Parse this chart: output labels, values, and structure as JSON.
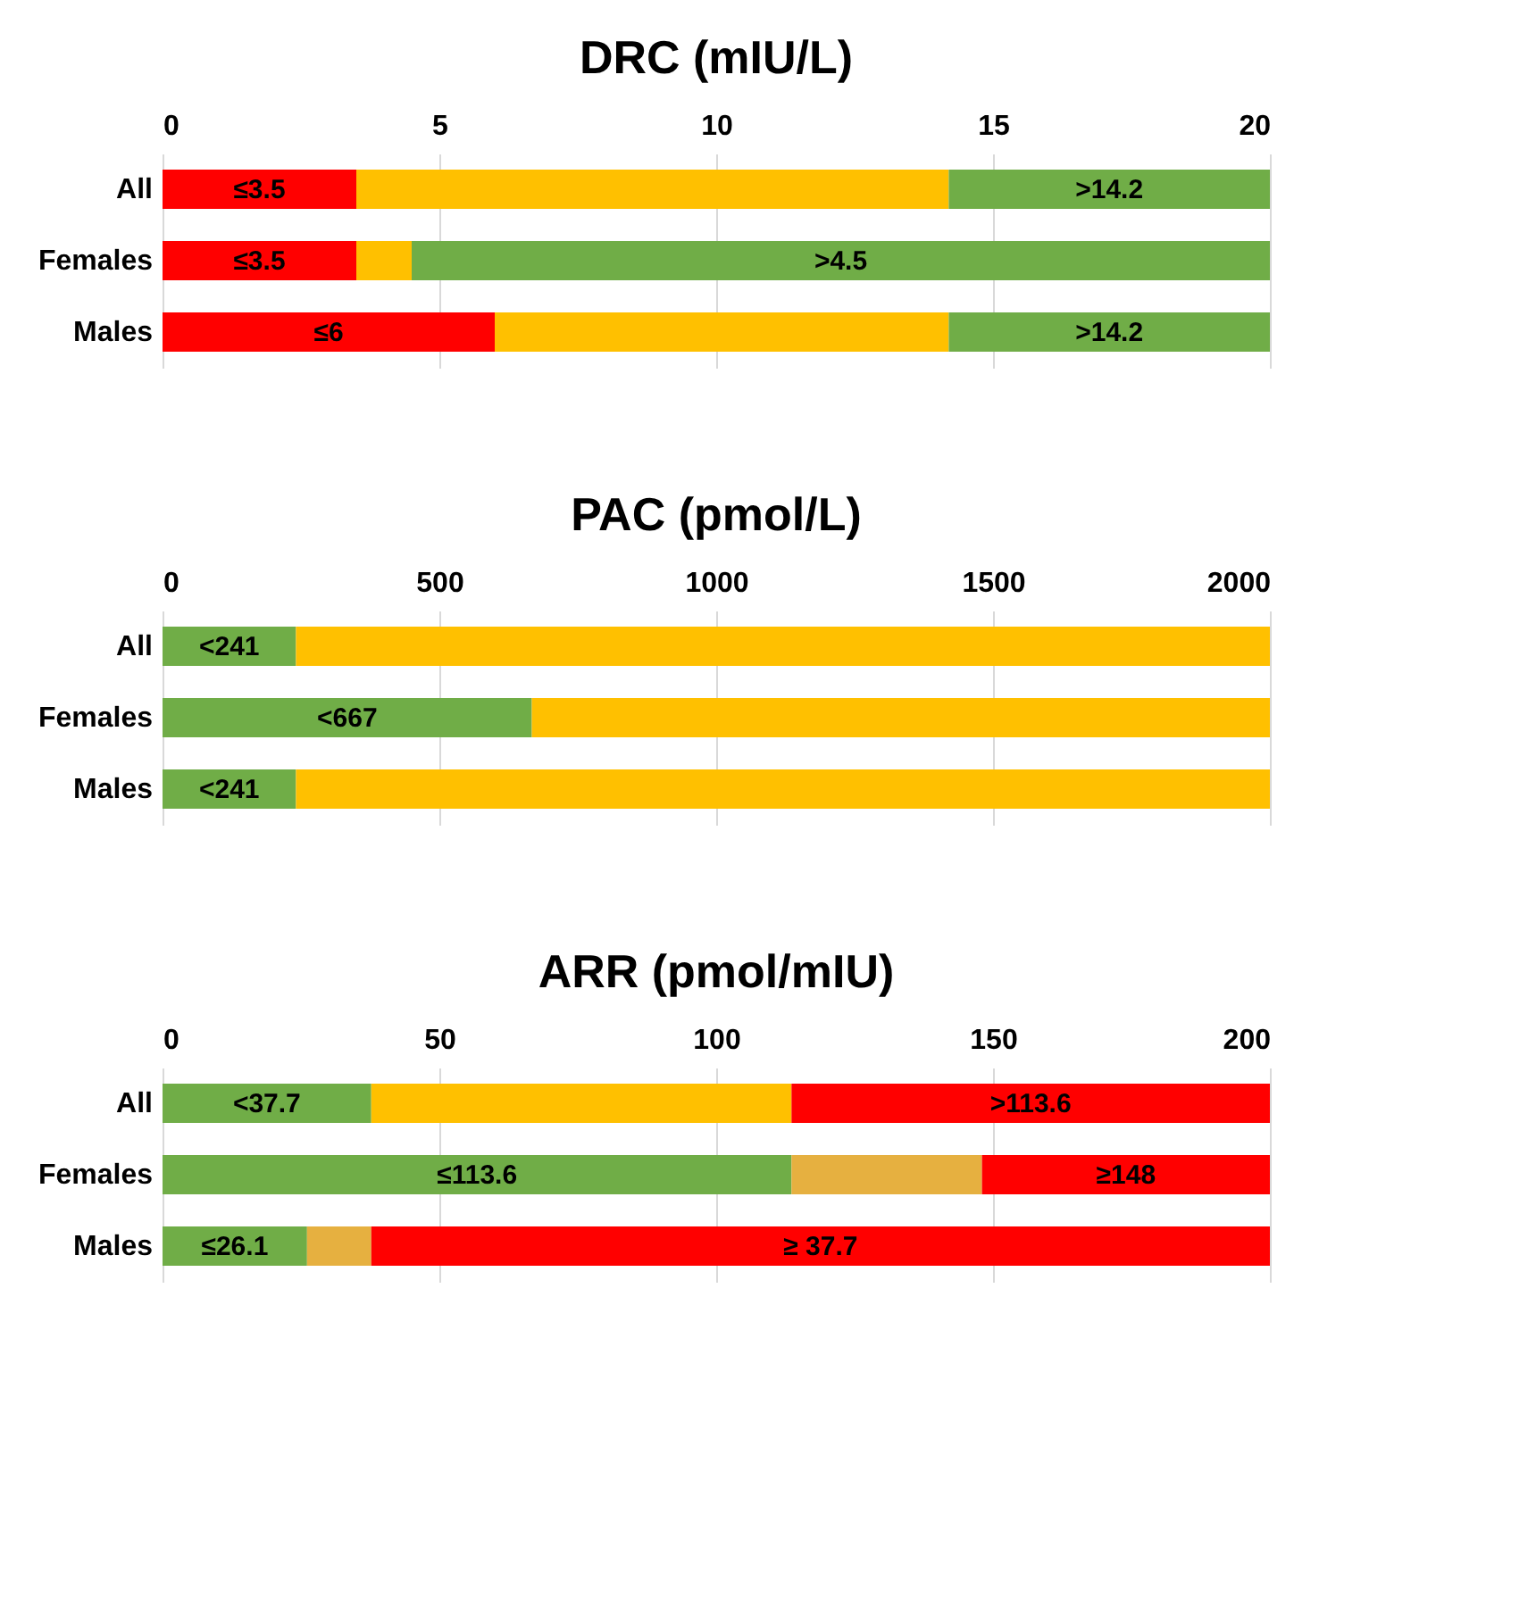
{
  "chart_data": [
    {
      "type": "bar",
      "title": "DRC (mIU/L)",
      "orientation": "horizontal",
      "stacked": true,
      "grid": "x",
      "categories": [
        "All",
        "Females",
        "Males"
      ],
      "xlim": [
        0,
        20
      ],
      "xticks": [
        0,
        5,
        10,
        15,
        20
      ],
      "series": [
        {
          "color": "#ff0000",
          "values": [
            3.5,
            3.5,
            6
          ],
          "value_labels": [
            "≤3.5",
            "≤3.5",
            "≤6"
          ]
        },
        {
          "color": "#ffc000",
          "values": [
            10.7,
            1.0,
            8.2
          ]
        },
        {
          "color": "#70ad47",
          "values": [
            5.8,
            15.5,
            5.8
          ],
          "value_labels": [
            ">14.2",
            ">4.5",
            ">14.2"
          ]
        }
      ]
    },
    {
      "type": "bar",
      "title": "PAC (pmol/L)",
      "orientation": "horizontal",
      "stacked": true,
      "grid": "x",
      "categories": [
        "All",
        "Females",
        "Males"
      ],
      "xlim": [
        0,
        2000
      ],
      "xticks": [
        0,
        500,
        1000,
        1500,
        2000
      ],
      "series": [
        {
          "color": "#70ad47",
          "values": [
            241,
            667,
            241
          ],
          "value_labels": [
            "<241",
            "<667",
            "<241"
          ]
        },
        {
          "color": "#ffc000",
          "values": [
            1759,
            1333,
            1759
          ]
        }
      ]
    },
    {
      "type": "bar",
      "title": "ARR (pmol/mIU)",
      "orientation": "horizontal",
      "stacked": true,
      "grid": "x",
      "categories": [
        "All",
        "Females",
        "Males"
      ],
      "xlim": [
        0,
        200
      ],
      "xticks": [
        0,
        50,
        100,
        150,
        200
      ],
      "series": [
        {
          "color": "#70ad47",
          "values": [
            37.7,
            113.6,
            26.1
          ],
          "value_labels": [
            "<37.7",
            "≤113.6",
            "≤26.1"
          ]
        },
        {
          "color": "#ffc000",
          "values": [
            75.9,
            null,
            null
          ]
        },
        {
          "color": "#e6b040",
          "values": [
            null,
            34.4,
            11.6
          ]
        },
        {
          "color": "#ff0000",
          "values": [
            86.4,
            52,
            162.3
          ],
          "value_labels": [
            ">113.6",
            "≥148",
            "≥ 37.7"
          ]
        }
      ]
    }
  ]
}
